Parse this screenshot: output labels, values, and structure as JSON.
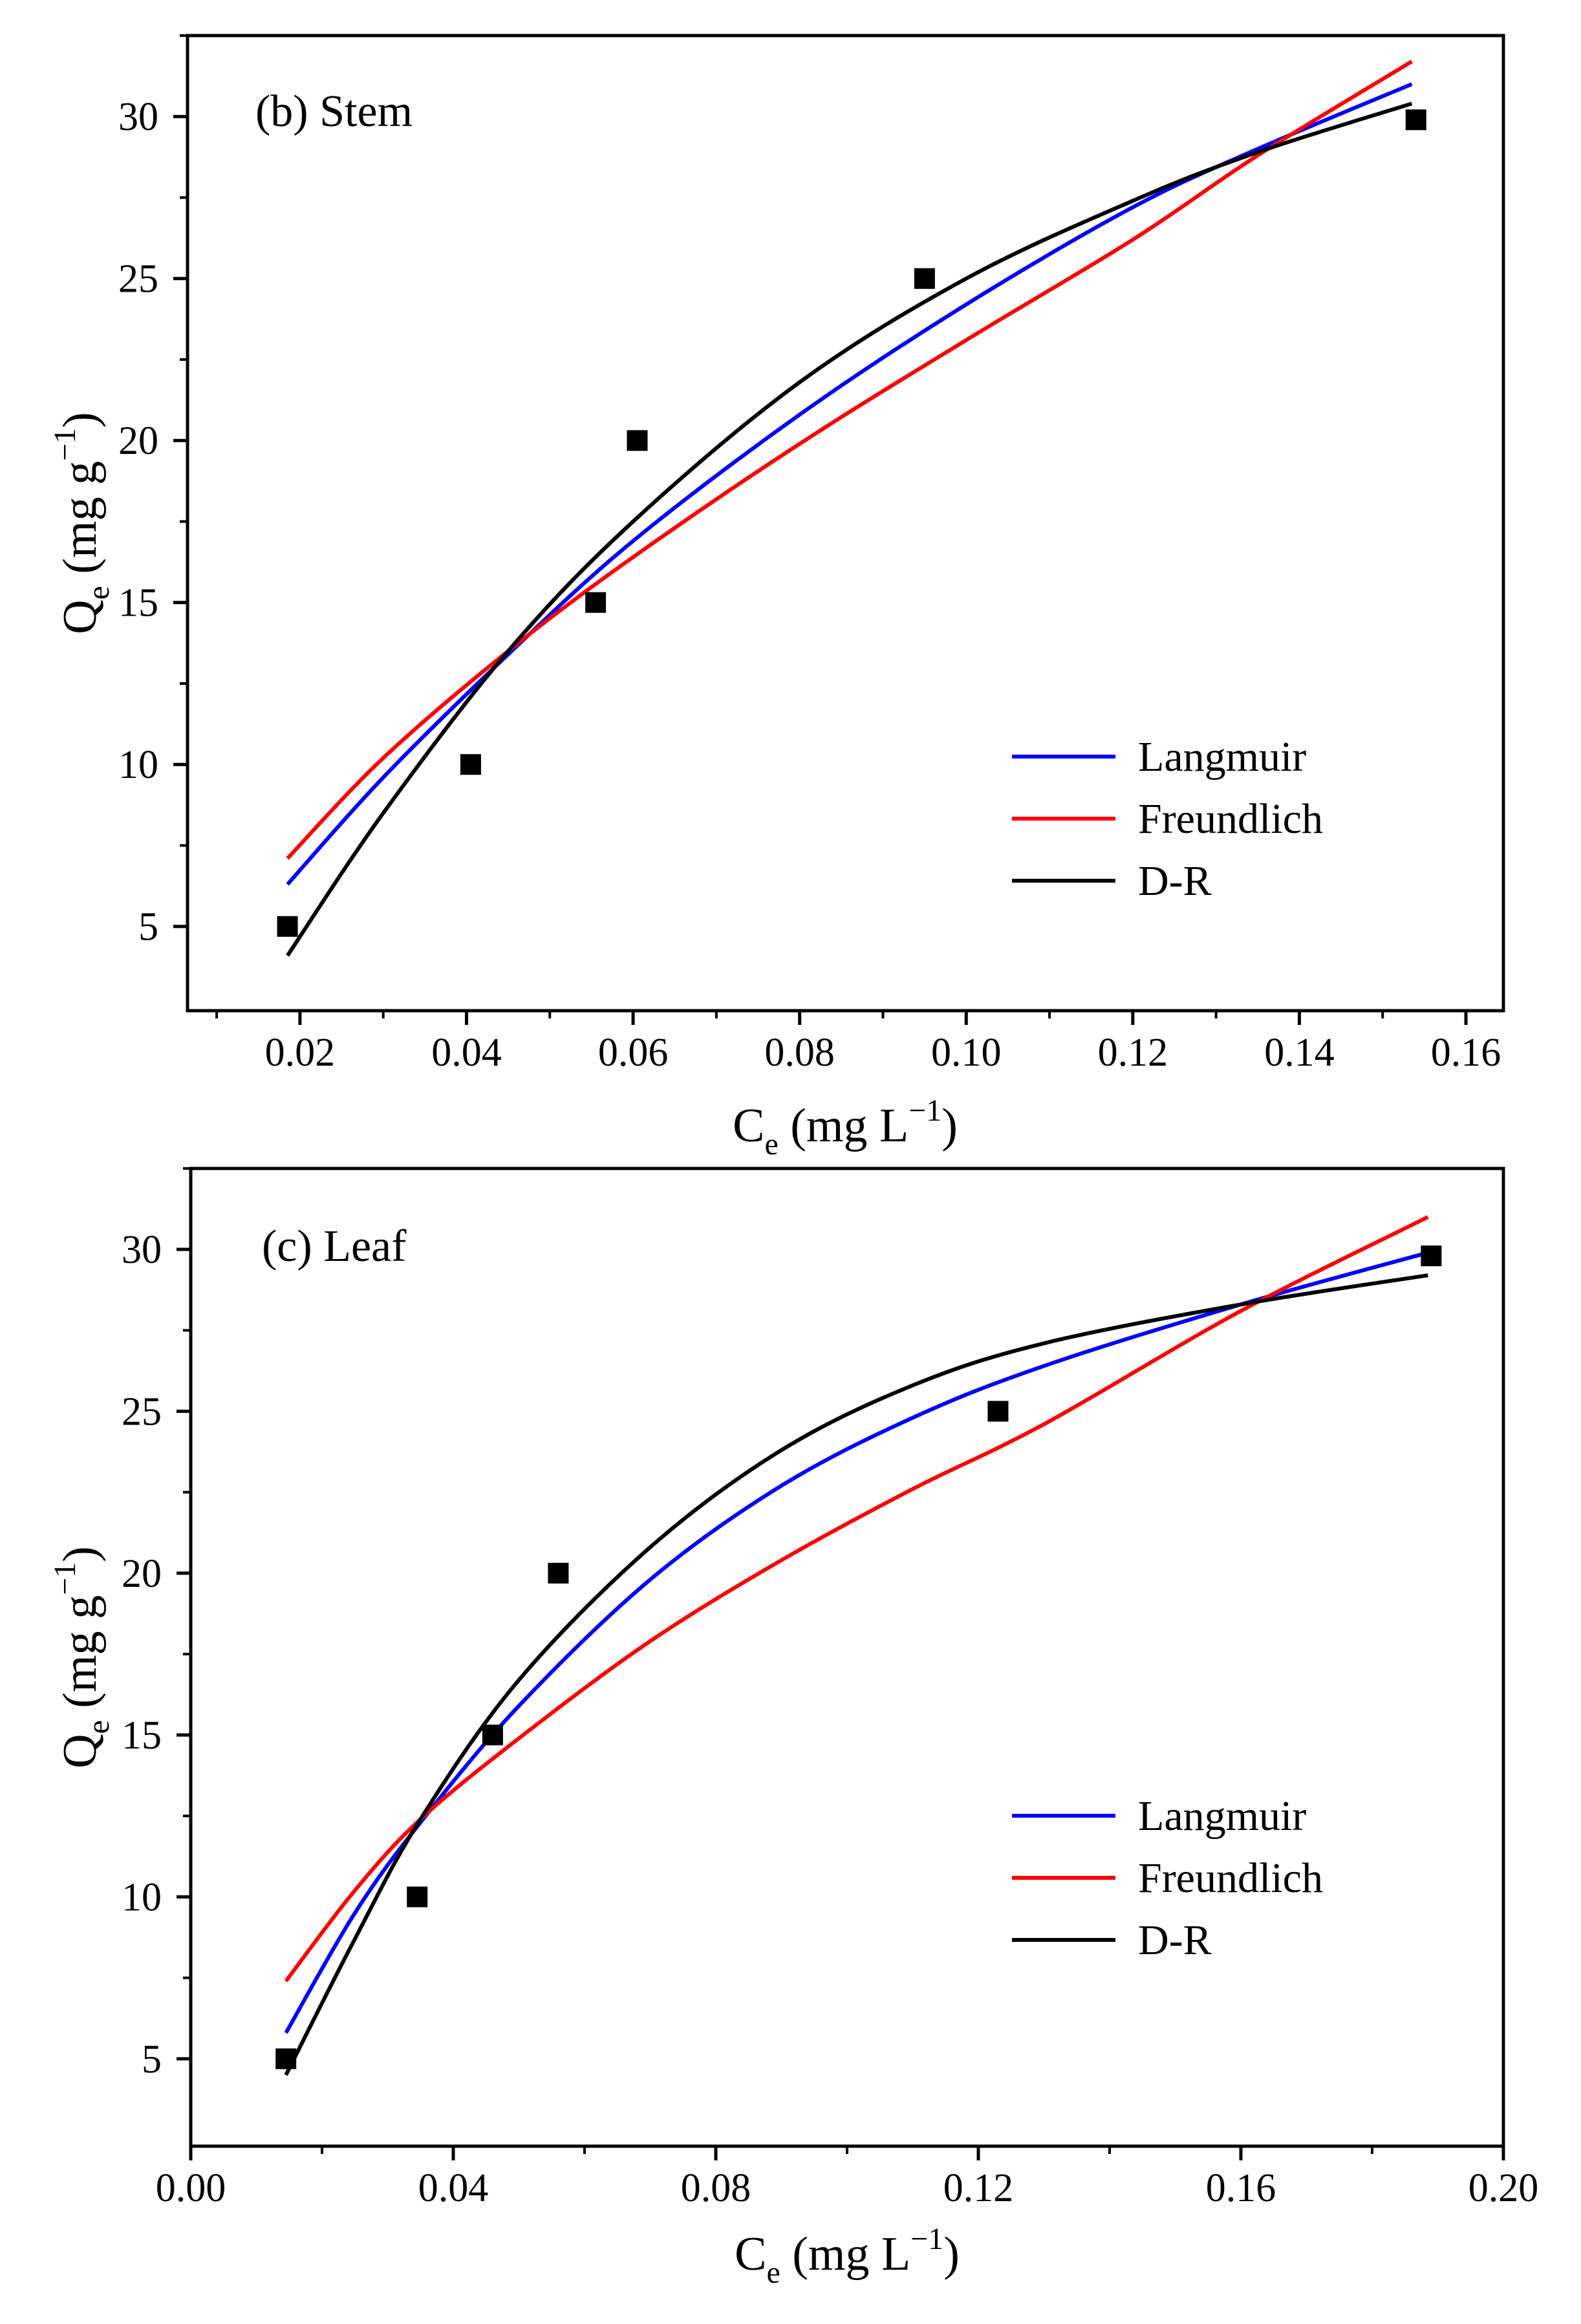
{
  "chart_data": [
    {
      "type": "scatter",
      "title": "(b) Stem",
      "xlabel": "C",
      "xlabel_sub": "e",
      "xlabel_unit": " (mg L",
      "xlabel_sup": "−1",
      "xlabel_close": ")",
      "ylabel": "Q",
      "ylabel_sub": "e",
      "ylabel_unit": " (mg g",
      "ylabel_sup": "−1",
      "ylabel_close": ")",
      "xlim": [
        0.0065,
        0.1645
      ],
      "ylim": [
        2.4,
        32.5
      ],
      "xticks": [
        "0.02",
        "0.04",
        "0.06",
        "0.08",
        "0.10",
        "0.12",
        "0.14",
        "0.16"
      ],
      "xtick_values": [
        0.02,
        0.04,
        0.06,
        0.08,
        0.1,
        0.12,
        0.14,
        0.16
      ],
      "yticks": [
        "5",
        "10",
        "15",
        "20",
        "25",
        "30"
      ],
      "ytick_values": [
        5,
        10,
        15,
        20,
        25,
        30
      ],
      "points": [
        {
          "x": 0.0185,
          "y": 5.0
        },
        {
          "x": 0.0405,
          "y": 10.0
        },
        {
          "x": 0.0555,
          "y": 15.0
        },
        {
          "x": 0.0605,
          "y": 20.0
        },
        {
          "x": 0.095,
          "y": 25.0
        },
        {
          "x": 0.154,
          "y": 29.9
        }
      ],
      "series": [
        {
          "name": "Langmuir",
          "color": "#0000ff",
          "x": [
            0.0185,
            0.03,
            0.045,
            0.06,
            0.08,
            0.1,
            0.12,
            0.135,
            0.1535
          ],
          "y": [
            6.3,
            9.6,
            13.4,
            16.9,
            20.8,
            24.2,
            27.2,
            29.0,
            31.0
          ]
        },
        {
          "name": "Freundlich",
          "color": "#ff0000",
          "x": [
            0.0185,
            0.03,
            0.045,
            0.06,
            0.08,
            0.1,
            0.12,
            0.135,
            0.1535
          ],
          "y": [
            7.1,
            10.2,
            13.5,
            16.4,
            19.9,
            23.1,
            26.2,
            28.8,
            31.7
          ]
        },
        {
          "name": "D-R",
          "color": "#000000",
          "x": [
            0.0185,
            0.03,
            0.045,
            0.06,
            0.08,
            0.1,
            0.12,
            0.135,
            0.1535
          ],
          "y": [
            4.1,
            8.5,
            13.5,
            17.5,
            21.8,
            25.0,
            27.4,
            28.9,
            30.4
          ]
        }
      ],
      "legend": "bottom-right"
    },
    {
      "type": "scatter",
      "title": "(c) Leaf",
      "xlabel": "C",
      "xlabel_sub": "e",
      "xlabel_unit": " (mg L",
      "xlabel_sup": "−1",
      "xlabel_close": ")",
      "ylabel": "Q",
      "ylabel_sub": "e",
      "ylabel_unit": " (mg g",
      "ylabel_sup": "−1",
      "ylabel_close": ")",
      "xlim": [
        0.0,
        0.2
      ],
      "ylim": [
        2.3,
        32.5
      ],
      "xticks": [
        "0.00",
        "0.04",
        "0.08",
        "0.12",
        "0.16",
        "0.20"
      ],
      "xtick_values": [
        0.0,
        0.04,
        0.08,
        0.12,
        0.16,
        0.2
      ],
      "yticks": [
        "5",
        "10",
        "15",
        "20",
        "25",
        "30"
      ],
      "ytick_values": [
        5,
        10,
        15,
        20,
        25,
        30
      ],
      "points": [
        {
          "x": 0.0145,
          "y": 5.0
        },
        {
          "x": 0.0345,
          "y": 10.0
        },
        {
          "x": 0.046,
          "y": 15.0
        },
        {
          "x": 0.056,
          "y": 20.0
        },
        {
          "x": 0.123,
          "y": 25.0
        },
        {
          "x": 0.189,
          "y": 29.8
        }
      ],
      "series": [
        {
          "name": "Langmuir",
          "color": "#0000ff",
          "x": [
            0.0145,
            0.025,
            0.035,
            0.05,
            0.07,
            0.09,
            0.11,
            0.13,
            0.16,
            0.1885
          ],
          "y": [
            5.8,
            9.5,
            12.3,
            15.9,
            19.8,
            22.7,
            24.8,
            26.4,
            28.3,
            29.9
          ]
        },
        {
          "name": "Freundlich",
          "color": "#ff0000",
          "x": [
            0.0145,
            0.025,
            0.035,
            0.05,
            0.07,
            0.09,
            0.11,
            0.13,
            0.16,
            0.1885
          ],
          "y": [
            7.4,
            10.2,
            12.4,
            14.9,
            17.9,
            20.4,
            22.6,
            24.6,
            28.1,
            31.0
          ]
        },
        {
          "name": "D-R",
          "color": "#000000",
          "x": [
            0.0145,
            0.025,
            0.035,
            0.05,
            0.07,
            0.09,
            0.11,
            0.13,
            0.16,
            0.1885
          ],
          "y": [
            4.5,
            8.7,
            12.4,
            16.7,
            20.8,
            23.8,
            25.8,
            27.1,
            28.3,
            29.2
          ]
        }
      ],
      "legend": "bottom-right"
    }
  ]
}
